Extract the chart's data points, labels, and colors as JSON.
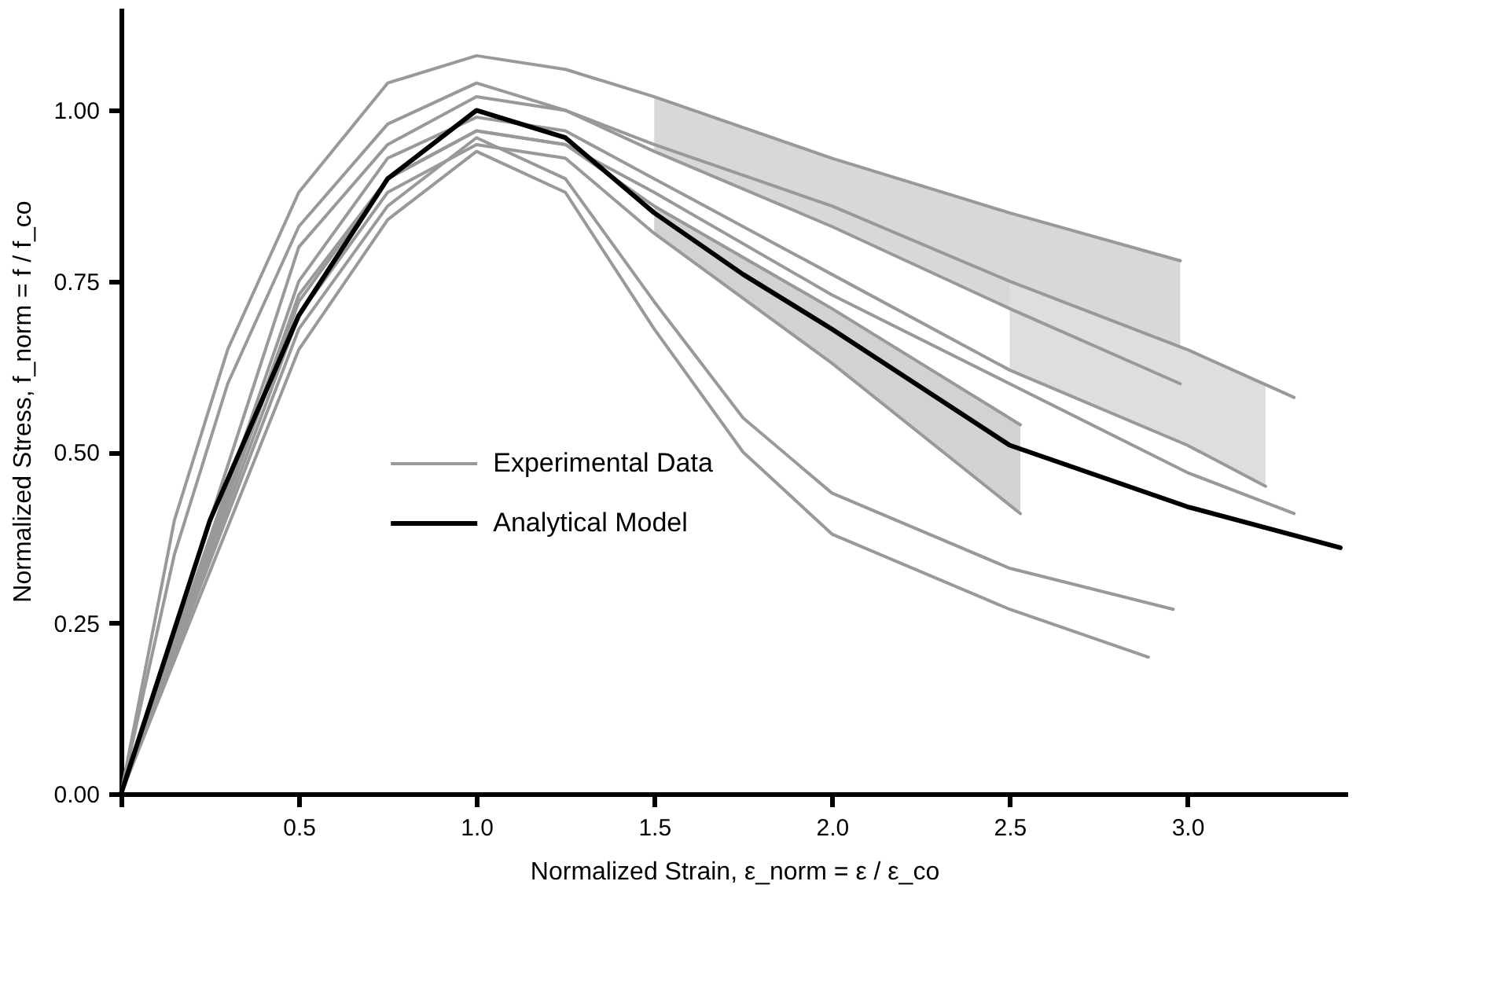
{
  "chart_data": {
    "type": "line",
    "xlabel": "Normalized Strain, ε_norm = ε / ε_co",
    "ylabel": "Normalized Stress, f_norm = f / f_co",
    "xlim": [
      0,
      3.45
    ],
    "ylim": [
      0,
      1.15
    ],
    "xticks": [
      {
        "value": 0,
        "label": null
      },
      0.5,
      {
        "value": 1,
        "label": "1.0"
      },
      1.5,
      {
        "value": 2,
        "label": "2.0"
      },
      2.5,
      {
        "value": 3,
        "label": "3.0"
      }
    ],
    "yticks": [
      {
        "value": 0,
        "label": "0.00"
      },
      0.25,
      {
        "value": 0.5,
        "label": "0.50"
      },
      0.75,
      {
        "value": 1,
        "label": "1.00"
      }
    ],
    "grid": false,
    "legend": "bottom",
    "line_style": "solid",
    "marker": "none",
    "series": [
      {
        "name": "Experimental Data",
        "color": "#999999",
        "x": [
          0,
          0.15,
          0.3,
          0.5,
          0.75,
          1.0,
          1.25,
          1.5,
          2.0,
          2.5,
          2.98
        ],
        "values": [
          0,
          0.4,
          0.65,
          0.88,
          1.04,
          1.08,
          1.06,
          1.02,
          0.93,
          0.85,
          0.78
        ]
      },
      {
        "color": "#999999",
        "x": [
          0,
          0.15,
          0.3,
          0.5,
          0.75,
          1.0,
          1.25,
          1.5,
          2.0,
          2.5,
          2.98
        ],
        "values": [
          0,
          0.35,
          0.6,
          0.83,
          0.98,
          1.04,
          1.0,
          0.94,
          0.83,
          0.71,
          0.6
        ],
        "lower": [
          null,
          null,
          null,
          null,
          null,
          null,
          null,
          0.94,
          0.83,
          0.71,
          0.6
        ],
        "upper": [
          null,
          null,
          null,
          null,
          null,
          null,
          null,
          1.02,
          0.93,
          0.85,
          0.78
        ]
      },
      {
        "color": "#999999",
        "x": [
          0,
          0.5,
          0.75,
          1.0,
          1.25,
          1.5,
          2.0,
          2.5,
          3.0,
          3.3
        ],
        "values": [
          0,
          0.8,
          0.95,
          1.02,
          1.0,
          0.95,
          0.86,
          0.75,
          0.65,
          0.58
        ]
      },
      {
        "color": "#999999",
        "x": [
          0,
          0.5,
          0.75,
          1.0,
          1.25,
          1.5,
          2.0,
          2.5,
          3.0,
          3.22
        ],
        "values": [
          0,
          0.75,
          0.93,
          0.99,
          0.97,
          0.9,
          0.76,
          0.62,
          0.51,
          0.45
        ],
        "lower": [
          null,
          null,
          null,
          null,
          null,
          null,
          null,
          0.62,
          0.51,
          0.45
        ],
        "upper": [
          null,
          null,
          null,
          null,
          null,
          null,
          null,
          0.75,
          0.65,
          0.6
        ]
      },
      {
        "color": "#999999",
        "x": [
          0,
          0.5,
          0.75,
          1.0,
          1.25,
          1.5,
          2.0,
          2.5,
          3.0,
          3.3
        ],
        "values": [
          0,
          0.72,
          0.9,
          0.97,
          0.95,
          0.88,
          0.73,
          0.6,
          0.47,
          0.41
        ]
      },
      {
        "color": "#999999",
        "x": [
          0,
          0.5,
          0.75,
          1.0,
          1.25,
          1.5,
          2.0,
          2.53
        ],
        "values": [
          0,
          0.73,
          0.9,
          0.97,
          0.95,
          0.86,
          0.71,
          0.54
        ]
      },
      {
        "color": "#999999",
        "x": [
          0,
          0.5,
          0.75,
          1.0,
          1.25,
          1.5,
          2.0,
          2.53
        ],
        "values": [
          0,
          0.7,
          0.88,
          0.95,
          0.93,
          0.82,
          0.63,
          0.41
        ],
        "lower": [
          null,
          null,
          null,
          null,
          null,
          0.82,
          0.63,
          0.41
        ],
        "upper": [
          null,
          null,
          null,
          null,
          null,
          0.86,
          0.71,
          0.54
        ]
      },
      {
        "color": "#999999",
        "x": [
          0,
          0.5,
          0.75,
          1.0,
          1.25,
          1.5,
          1.75,
          2.0,
          2.5,
          2.96
        ],
        "values": [
          0,
          0.68,
          0.86,
          0.96,
          0.9,
          0.72,
          0.55,
          0.44,
          0.33,
          0.27
        ]
      },
      {
        "color": "#999999",
        "x": [
          0,
          0.5,
          0.75,
          1.0,
          1.25,
          1.5,
          1.75,
          2.0,
          2.5,
          2.89
        ],
        "values": [
          0,
          0.65,
          0.84,
          0.94,
          0.88,
          0.68,
          0.5,
          0.38,
          0.27,
          0.2
        ]
      },
      {
        "name": "Analytical Model",
        "color": "#000000",
        "x": [
          0,
          0.25,
          0.5,
          0.75,
          1.0,
          1.25,
          1.5,
          1.75,
          2.0,
          2.5,
          3.0,
          3.43
        ],
        "values": [
          0,
          0.4,
          0.7,
          0.9,
          1.0,
          0.96,
          0.85,
          0.76,
          0.68,
          0.51,
          0.42,
          0.36
        ]
      }
    ]
  }
}
